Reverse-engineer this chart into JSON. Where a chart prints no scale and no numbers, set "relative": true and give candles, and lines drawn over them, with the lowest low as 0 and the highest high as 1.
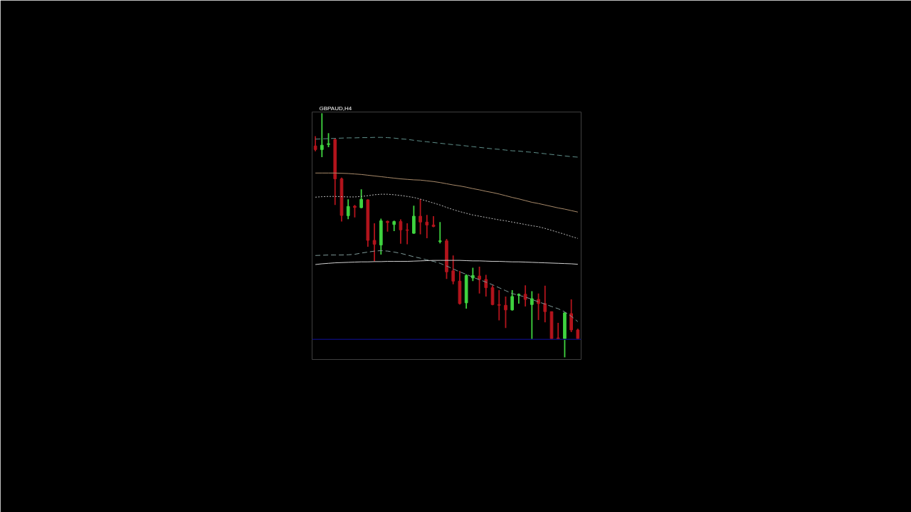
{
  "chart_data": {
    "type": "candlestick",
    "title": "GBPAUD,H4",
    "relative": true,
    "tick_labels": false,
    "categories": [
      null,
      null,
      null,
      null,
      null,
      null,
      null,
      null,
      null,
      null,
      null,
      null,
      null,
      null,
      null,
      null,
      null,
      null,
      null,
      null,
      null,
      null,
      null,
      null,
      null,
      null,
      null,
      null,
      null,
      null,
      null,
      null,
      null,
      null,
      null,
      null,
      null,
      null,
      null,
      null,
      null
    ],
    "ohlc": [
      [
        0.866,
        0.906,
        0.844,
        0.851
      ],
      [
        0.851,
        1.0,
        0.82,
        0.869
      ],
      [
        0.872,
        0.918,
        0.861,
        0.875
      ],
      [
        0.892,
        0.897,
        0.624,
        0.731
      ],
      [
        0.731,
        0.736,
        0.556,
        0.581
      ],
      [
        0.58,
        0.647,
        0.566,
        0.618
      ],
      [
        0.619,
        0.624,
        0.573,
        0.614
      ],
      [
        0.613,
        0.688,
        0.611,
        0.647
      ],
      [
        0.645,
        0.647,
        0.453,
        0.479
      ],
      [
        0.479,
        0.549,
        0.393,
        0.463
      ],
      [
        0.46,
        0.568,
        0.421,
        0.559
      ],
      [
        0.557,
        0.56,
        0.515,
        0.552
      ],
      [
        0.544,
        0.56,
        0.517,
        0.556
      ],
      [
        0.556,
        0.565,
        0.465,
        0.522
      ],
      [
        0.522,
        0.549,
        0.463,
        0.52
      ],
      [
        0.508,
        0.621,
        0.506,
        0.578
      ],
      [
        0.578,
        0.648,
        0.504,
        0.554
      ],
      [
        0.554,
        0.583,
        0.488,
        0.542
      ],
      [
        0.542,
        0.578,
        0.533,
        0.536
      ],
      [
        0.474,
        0.554,
        0.467,
        0.477
      ],
      [
        0.477,
        0.485,
        0.321,
        0.35
      ],
      [
        0.354,
        0.417,
        0.299,
        0.312
      ],
      [
        0.312,
        0.354,
        0.216,
        0.22
      ],
      [
        0.223,
        0.34,
        0.199,
        0.335
      ],
      [
        0.325,
        0.367,
        0.312,
        0.335
      ],
      [
        0.333,
        0.371,
        0.261,
        0.319
      ],
      [
        0.319,
        0.338,
        0.249,
        0.285
      ],
      [
        0.285,
        0.295,
        0.213,
        0.216
      ],
      [
        0.216,
        0.275,
        0.151,
        0.213
      ],
      [
        0.213,
        0.249,
        0.12,
        0.194
      ],
      [
        0.194,
        0.275,
        0.191,
        0.249
      ],
      [
        0.254,
        0.261,
        0.22,
        0.258
      ],
      [
        0.258,
        0.295,
        0.208,
        0.237
      ],
      [
        0.216,
        0.271,
        0.072,
        0.24
      ],
      [
        0.237,
        0.261,
        0.153,
        0.22
      ],
      [
        0.22,
        0.293,
        0.143,
        0.187
      ],
      [
        0.187,
        0.187,
        0.072,
        0.076
      ],
      [
        0.079,
        0.141,
        0.072,
        0.076
      ],
      [
        0.076,
        0.184,
        0.0,
        0.182
      ],
      [
        0.179,
        0.237,
        0.103,
        0.112
      ],
      [
        0.112,
        0.117,
        0.072,
        0.076
      ]
    ],
    "colors": [
      "#b3141c",
      "#3fd33f",
      "#3fd33f",
      "#b3141c",
      "#b3141c",
      "#3fd33f",
      "#b3141c",
      "#3fd33f",
      "#b3141c",
      "#b3141c",
      "#3fd33f",
      "#b3141c",
      "#3fd33f",
      "#b3141c",
      "#b3141c",
      "#3fd33f",
      "#b3141c",
      "#b3141c",
      "#b3141c",
      "#3fd33f",
      "#b3141c",
      "#b3141c",
      "#b3141c",
      "#3fd33f",
      "#3fd33f",
      "#b3141c",
      "#b3141c",
      "#b3141c",
      "#b3141c",
      "#b3141c",
      "#3fd33f",
      "#3fd33f",
      "#b3141c",
      "#3fd33f",
      "#b3141c",
      "#b3141c",
      "#b3141c",
      "#b3141c",
      "#3fd33f",
      "#b3141c",
      "#b3141c"
    ],
    "series": [
      {
        "type": "line",
        "color": "#5f8f8a",
        "line_style": "dashed",
        "values": [
          0.894,
          0.895,
          0.896,
          0.897,
          0.898,
          0.899,
          0.899,
          0.9,
          0.9,
          0.901,
          0.901,
          0.9,
          0.898,
          0.895,
          0.893,
          0.889,
          0.886,
          0.883,
          0.88,
          0.877,
          0.874,
          0.871,
          0.869,
          0.866,
          0.863,
          0.86,
          0.857,
          0.854,
          0.852,
          0.849,
          0.846,
          0.845,
          0.842,
          0.84,
          0.837,
          0.834,
          0.831,
          0.828,
          0.825,
          0.822,
          0.82
        ]
      },
      {
        "type": "line",
        "color": "#a88a6a",
        "line_style": "solid",
        "values": [
          0.755,
          0.755,
          0.755,
          0.755,
          0.754,
          0.753,
          0.751,
          0.749,
          0.746,
          0.743,
          0.74,
          0.737,
          0.734,
          0.731,
          0.729,
          0.727,
          0.726,
          0.723,
          0.72,
          0.716,
          0.711,
          0.706,
          0.702,
          0.697,
          0.691,
          0.686,
          0.68,
          0.675,
          0.669,
          0.662,
          0.655,
          0.649,
          0.642,
          0.635,
          0.63,
          0.624,
          0.618,
          0.612,
          0.607,
          0.601,
          0.595
        ]
      },
      {
        "type": "line",
        "color": "#bdbdbd",
        "line_style": "dotted",
        "values": [
          0.656,
          0.658,
          0.659,
          0.659,
          0.658,
          0.657,
          0.657,
          0.659,
          0.662,
          0.666,
          0.668,
          0.668,
          0.666,
          0.663,
          0.659,
          0.655,
          0.648,
          0.64,
          0.632,
          0.624,
          0.614,
          0.605,
          0.597,
          0.59,
          0.583,
          0.578,
          0.573,
          0.568,
          0.563,
          0.559,
          0.554,
          0.549,
          0.544,
          0.539,
          0.535,
          0.528,
          0.52,
          0.512,
          0.504,
          0.495,
          0.487
        ]
      },
      {
        "type": "line",
        "color": "#7f9a99",
        "line_style": "dashed",
        "values": [
          0.417,
          0.418,
          0.419,
          0.419,
          0.419,
          0.42,
          0.422,
          0.427,
          0.431,
          0.435,
          0.437,
          0.435,
          0.431,
          0.426,
          0.419,
          0.412,
          0.406,
          0.399,
          0.393,
          0.385,
          0.374,
          0.362,
          0.35,
          0.34,
          0.328,
          0.318,
          0.308,
          0.297,
          0.285,
          0.273,
          0.261,
          0.254,
          0.247,
          0.237,
          0.227,
          0.218,
          0.208,
          0.199,
          0.186,
          0.168,
          0.146
        ]
      },
      {
        "type": "line",
        "color": "#d0d0d0",
        "line_style": "solid",
        "values": [
          0.38,
          0.383,
          0.385,
          0.387,
          0.388,
          0.389,
          0.39,
          0.391,
          0.391,
          0.392,
          0.392,
          0.393,
          0.393,
          0.393,
          0.393,
          0.394,
          0.395,
          0.396,
          0.397,
          0.397,
          0.397,
          0.397,
          0.397,
          0.396,
          0.395,
          0.395,
          0.394,
          0.393,
          0.393,
          0.392,
          0.391,
          0.391,
          0.39,
          0.389,
          0.388,
          0.387,
          0.386,
          0.385,
          0.384,
          0.383,
          0.381
        ]
      }
    ],
    "ref_lines": [
      {
        "axis": "y",
        "value": 0.073,
        "color": "#0b0b6b"
      }
    ]
  }
}
